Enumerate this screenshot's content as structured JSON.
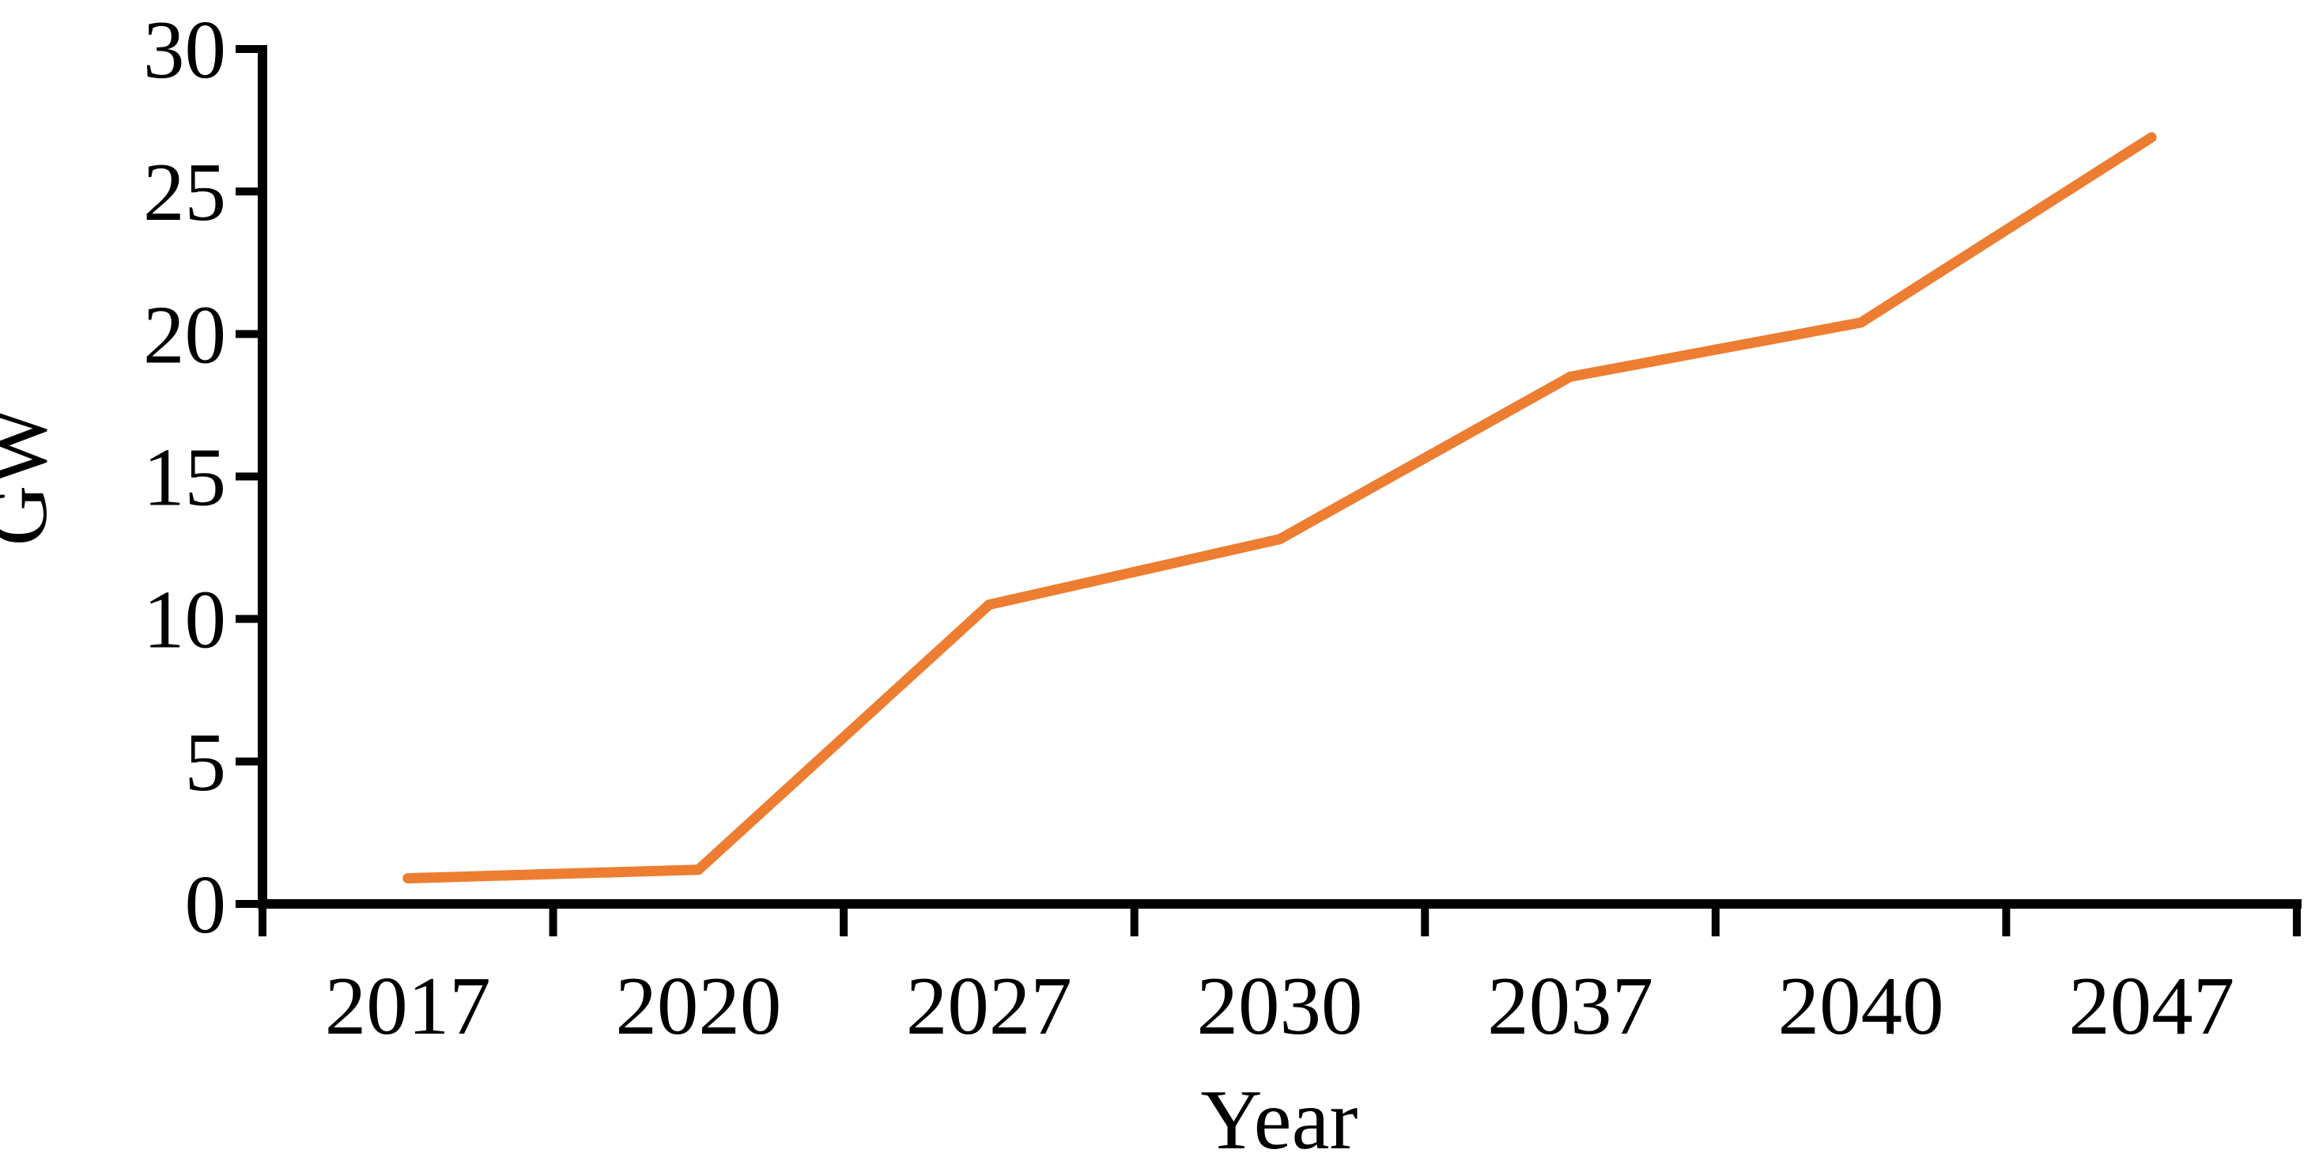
{
  "figure": {
    "background_color": "#ffffff",
    "text_color": "#000000",
    "axis_color": "#000000"
  },
  "chart_data": {
    "type": "line",
    "title": "",
    "categories": [
      "2017",
      "2020",
      "2027",
      "2030",
      "2037",
      "2040",
      "2047"
    ],
    "values": [
      0.9,
      1.2,
      10.5,
      12.8,
      18.5,
      20.4,
      26.9
    ],
    "xlabel": "Year",
    "ylabel": "GW",
    "ylim": [
      0,
      30
    ],
    "yticks": [
      0,
      5,
      10,
      15,
      20,
      25,
      30
    ],
    "grid": false,
    "legend": "none",
    "line_color": "#ED7D31",
    "line_style": "solid",
    "markers": "none"
  }
}
